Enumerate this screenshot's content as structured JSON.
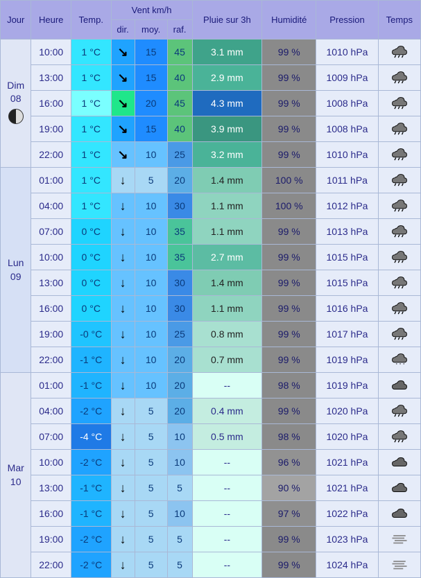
{
  "headers": {
    "jour": "Jour",
    "heure": "Heure",
    "temp": "Temp.",
    "vent": "Vent km/h",
    "dir": "dir.",
    "moy": "moy.",
    "raf": "raf.",
    "pluie": "Pluie sur 3h",
    "humidite": "Humidité",
    "pression": "Pression",
    "temps": "Temps"
  },
  "days": [
    {
      "label": "Dim 08",
      "moon": true,
      "bg": "#e0e6f5",
      "rows": [
        {
          "heure": "10:00",
          "temp": "1 °C",
          "temp_bg": "#33e6ff",
          "dir": "↘",
          "dir_bg": "#1fa3ff",
          "moy": "15",
          "moy_bg": "#1f8cff",
          "raf": "45",
          "raf_bg": "#5cc47a",
          "pluie": "3.1 mm",
          "pluie_bg": "#3fa38a",
          "pluie_fg": "#fff",
          "hum": "99 %",
          "hum_bg": "#8a8a8a",
          "pres": "1010 hPa",
          "icon": "rain"
        },
        {
          "heure": "13:00",
          "temp": "1 °C",
          "temp_bg": "#33e6ff",
          "dir": "↘",
          "dir_bg": "#1fa3ff",
          "moy": "15",
          "moy_bg": "#1f8cff",
          "raf": "40",
          "raf_bg": "#5cc47a",
          "pluie": "2.9 mm",
          "pluie_bg": "#4ab398",
          "pluie_fg": "#fff",
          "hum": "99 %",
          "hum_bg": "#8a8a8a",
          "pres": "1009 hPa",
          "icon": "rain"
        },
        {
          "heure": "16:00",
          "temp": "1 °C",
          "temp_bg": "#7affff",
          "dir": "↘",
          "dir_bg": "#1fe68a",
          "moy": "20",
          "moy_bg": "#1f8cff",
          "raf": "45",
          "raf_bg": "#5cc47a",
          "pluie": "4.3 mm",
          "pluie_bg": "#1f6bbf",
          "pluie_fg": "#fff",
          "hum": "99 %",
          "hum_bg": "#8a8a8a",
          "pres": "1008 hPa",
          "icon": "rain"
        },
        {
          "heure": "19:00",
          "temp": "1 °C",
          "temp_bg": "#33e6ff",
          "dir": "↘",
          "dir_bg": "#1fa3ff",
          "moy": "15",
          "moy_bg": "#1f8cff",
          "raf": "40",
          "raf_bg": "#5cc47a",
          "pluie": "3.9 mm",
          "pluie_bg": "#3a9680",
          "pluie_fg": "#fff",
          "hum": "99 %",
          "hum_bg": "#8a8a8a",
          "pres": "1008 hPa",
          "icon": "rain"
        },
        {
          "heure": "22:00",
          "temp": "1 °C",
          "temp_bg": "#33e6ff",
          "dir": "↘",
          "dir_bg": "#66c2ff",
          "moy": "10",
          "moy_bg": "#66c2ff",
          "raf": "25",
          "raf_bg": "#4a9ae6",
          "pluie": "3.2 mm",
          "pluie_bg": "#4ab398",
          "pluie_fg": "#fff",
          "hum": "99 %",
          "hum_bg": "#8a8a8a",
          "pres": "1010 hPa",
          "icon": "rain"
        }
      ]
    },
    {
      "label": "Lun 09",
      "moon": false,
      "bg": "#d6e0f5",
      "rows": [
        {
          "heure": "01:00",
          "temp": "1 °C",
          "temp_bg": "#33e6ff",
          "dir": "↓",
          "dir_bg": "#a8d8f5",
          "moy": "5",
          "moy_bg": "#a8d8f5",
          "raf": "20",
          "raf_bg": "#5caee6",
          "pluie": "1.4 mm",
          "pluie_bg": "#7fccb3",
          "pluie_fg": "#222",
          "hum": "100 %",
          "hum_bg": "#8a8a8a",
          "pres": "1011 hPa",
          "icon": "rain"
        },
        {
          "heure": "04:00",
          "temp": "1 °C",
          "temp_bg": "#33e6ff",
          "dir": "↓",
          "dir_bg": "#66c2ff",
          "moy": "10",
          "moy_bg": "#66c2ff",
          "raf": "30",
          "raf_bg": "#3a8ae6",
          "pluie": "1.1 mm",
          "pluie_bg": "#8fd4bf",
          "pluie_fg": "#222",
          "hum": "100 %",
          "hum_bg": "#8a8a8a",
          "pres": "1012 hPa",
          "icon": "rain"
        },
        {
          "heure": "07:00",
          "temp": "0 °C",
          "temp_bg": "#1fd4ff",
          "dir": "↓",
          "dir_bg": "#66c2ff",
          "moy": "10",
          "moy_bg": "#66c2ff",
          "raf": "35",
          "raf_bg": "#4ac49a",
          "pluie": "1.1 mm",
          "pluie_bg": "#8fd4bf",
          "pluie_fg": "#222",
          "hum": "99 %",
          "hum_bg": "#8a8a8a",
          "pres": "1013 hPa",
          "icon": "rain"
        },
        {
          "heure": "10:00",
          "temp": "0 °C",
          "temp_bg": "#1fd4ff",
          "dir": "↓",
          "dir_bg": "#66c2ff",
          "moy": "10",
          "moy_bg": "#66c2ff",
          "raf": "35",
          "raf_bg": "#4ac49a",
          "pluie": "2.7 mm",
          "pluie_bg": "#5cbca3",
          "pluie_fg": "#fff",
          "hum": "99 %",
          "hum_bg": "#8a8a8a",
          "pres": "1015 hPa",
          "icon": "rain"
        },
        {
          "heure": "13:00",
          "temp": "0 °C",
          "temp_bg": "#1fd4ff",
          "dir": "↓",
          "dir_bg": "#66c2ff",
          "moy": "10",
          "moy_bg": "#66c2ff",
          "raf": "30",
          "raf_bg": "#3a8ae6",
          "pluie": "1.4 mm",
          "pluie_bg": "#7fccb3",
          "pluie_fg": "#222",
          "hum": "99 %",
          "hum_bg": "#8a8a8a",
          "pres": "1015 hPa",
          "icon": "rain"
        },
        {
          "heure": "16:00",
          "temp": "0 °C",
          "temp_bg": "#1fd4ff",
          "dir": "↓",
          "dir_bg": "#66c2ff",
          "moy": "10",
          "moy_bg": "#66c2ff",
          "raf": "30",
          "raf_bg": "#3a8ae6",
          "pluie": "1.1 mm",
          "pluie_bg": "#8fd4bf",
          "pluie_fg": "#222",
          "hum": "99 %",
          "hum_bg": "#8a8a8a",
          "pres": "1016 hPa",
          "icon": "rain"
        },
        {
          "heure": "19:00",
          "temp": "-0 °C",
          "temp_bg": "#1fc4ff",
          "dir": "↓",
          "dir_bg": "#66c2ff",
          "moy": "10",
          "moy_bg": "#66c2ff",
          "raf": "25",
          "raf_bg": "#4a9ae6",
          "pluie": "0.8 mm",
          "pluie_bg": "#a8e0d0",
          "pluie_fg": "#222",
          "hum": "99 %",
          "hum_bg": "#8a8a8a",
          "pres": "1017 hPa",
          "icon": "rain"
        },
        {
          "heure": "22:00",
          "temp": "-1 °C",
          "temp_bg": "#1fb4ff",
          "dir": "↓",
          "dir_bg": "#66c2ff",
          "moy": "10",
          "moy_bg": "#66c2ff",
          "raf": "20",
          "raf_bg": "#5caee6",
          "pluie": "0.7 mm",
          "pluie_bg": "#a8e0d0",
          "pluie_fg": "#222",
          "hum": "99 %",
          "hum_bg": "#8a8a8a",
          "pres": "1019 hPa",
          "icon": "snow"
        }
      ]
    },
    {
      "label": "Mar 10",
      "moon": false,
      "bg": "#e0e6f5",
      "rows": [
        {
          "heure": "01:00",
          "temp": "-1 °C",
          "temp_bg": "#1fb4ff",
          "dir": "↓",
          "dir_bg": "#66c2ff",
          "moy": "10",
          "moy_bg": "#66c2ff",
          "raf": "20",
          "raf_bg": "#5caee6",
          "pluie": "--",
          "pluie_bg": "#d9fff5",
          "pluie_fg": "#2a2a8a",
          "hum": "98 %",
          "hum_bg": "#8a8a8a",
          "pres": "1019 hPa",
          "icon": "cloud"
        },
        {
          "heure": "04:00",
          "temp": "-2 °C",
          "temp_bg": "#1fa3ff",
          "dir": "↓",
          "dir_bg": "#a8d8f5",
          "moy": "5",
          "moy_bg": "#a8d8f5",
          "raf": "20",
          "raf_bg": "#5caee6",
          "pluie": "0.4 mm",
          "pluie_bg": "#c4ede0",
          "pluie_fg": "#2a2a8a",
          "hum": "99 %",
          "hum_bg": "#8a8a8a",
          "pres": "1020 hPa",
          "icon": "rain"
        },
        {
          "heure": "07:00",
          "temp": "-4 °C",
          "temp_bg": "#1f7ae6",
          "temp_fg": "#fff",
          "dir": "↓",
          "dir_bg": "#a8d8f5",
          "moy": "5",
          "moy_bg": "#a8d8f5",
          "raf": "10",
          "raf_bg": "#8cc4f0",
          "pluie": "0.5 mm",
          "pluie_bg": "#c4ede0",
          "pluie_fg": "#2a2a8a",
          "hum": "98 %",
          "hum_bg": "#8a8a8a",
          "pres": "1020 hPa",
          "icon": "rain"
        },
        {
          "heure": "10:00",
          "temp": "-2 °C",
          "temp_bg": "#1fa3ff",
          "dir": "↓",
          "dir_bg": "#a8d8f5",
          "moy": "5",
          "moy_bg": "#a8d8f5",
          "raf": "10",
          "raf_bg": "#8cc4f0",
          "pluie": "--",
          "pluie_bg": "#d9fff5",
          "pluie_fg": "#2a2a8a",
          "hum": "96 %",
          "hum_bg": "#929292",
          "pres": "1021 hPa",
          "icon": "cloud"
        },
        {
          "heure": "13:00",
          "temp": "-1 °C",
          "temp_bg": "#1fb4ff",
          "dir": "↓",
          "dir_bg": "#a8d8f5",
          "moy": "5",
          "moy_bg": "#a8d8f5",
          "raf": "5",
          "raf_bg": "#a8d8f5",
          "pluie": "--",
          "pluie_bg": "#d9fff5",
          "pluie_fg": "#2a2a8a",
          "hum": "90 %",
          "hum_bg": "#a3a3a3",
          "pres": "1021 hPa",
          "icon": "cloud"
        },
        {
          "heure": "16:00",
          "temp": "-1 °C",
          "temp_bg": "#1fb4ff",
          "dir": "↓",
          "dir_bg": "#a8d8f5",
          "moy": "5",
          "moy_bg": "#a8d8f5",
          "raf": "10",
          "raf_bg": "#8cc4f0",
          "pluie": "--",
          "pluie_bg": "#d9fff5",
          "pluie_fg": "#2a2a8a",
          "hum": "97 %",
          "hum_bg": "#8f8f8f",
          "pres": "1022 hPa",
          "icon": "cloud"
        },
        {
          "heure": "19:00",
          "temp": "-2 °C",
          "temp_bg": "#1fa3ff",
          "dir": "↓",
          "dir_bg": "#a8d8f5",
          "moy": "5",
          "moy_bg": "#a8d8f5",
          "raf": "5",
          "raf_bg": "#a8d8f5",
          "pluie": "--",
          "pluie_bg": "#d9fff5",
          "pluie_fg": "#2a2a8a",
          "hum": "99 %",
          "hum_bg": "#8a8a8a",
          "pres": "1023 hPa",
          "icon": "fog"
        },
        {
          "heure": "22:00",
          "temp": "-2 °C",
          "temp_bg": "#1fa3ff",
          "dir": "↓",
          "dir_bg": "#a8d8f5",
          "moy": "5",
          "moy_bg": "#a8d8f5",
          "raf": "5",
          "raf_bg": "#a8d8f5",
          "pluie": "--",
          "pluie_bg": "#d9fff5",
          "pluie_fg": "#2a2a8a",
          "hum": "99 %",
          "hum_bg": "#8a8a8a",
          "pres": "1024 hPa",
          "icon": "fog"
        }
      ]
    }
  ],
  "icon_svg": {
    "rain": "<svg viewBox='0 0 32 24'><path d='M8 10 Q4 10 4 14 Q4 18 8 18 L24 18 Q28 18 28 14 Q28 10 24 10 Q24 4 18 4 Q14 4 12 8 Q10 8 8 10 Z' fill='#777' stroke='#000' stroke-width='1'/><line x1='10' y1='19' x2='8' y2='23' stroke='#000' stroke-width='1.5'/><line x1='16' y1='19' x2='14' y2='23' stroke='#000' stroke-width='1.5'/><line x1='22' y1='19' x2='20' y2='23' stroke='#000' stroke-width='1.5'/></svg>",
    "snow": "<svg viewBox='0 0 32 24'><path d='M8 10 Q4 10 4 14 Q4 18 8 18 L24 18 Q28 18 28 14 Q28 10 24 10 Q24 4 18 4 Q14 4 12 8 Q10 8 8 10 Z' fill='#777' stroke='#000' stroke-width='1'/><text x='10' y='24' font-size='6'>*</text><text x='16' y='24' font-size='6'>*</text><text x='22' y='24' font-size='6'>*</text></svg>",
    "cloud": "<svg viewBox='0 0 32 24'><path d='M8 12 Q4 12 4 16 Q4 20 8 20 L24 20 Q28 20 28 16 Q28 12 24 12 Q24 6 18 6 Q14 6 12 10 Q10 10 8 12 Z' fill='#666' stroke='#000' stroke-width='1'/></svg>",
    "fog": "<svg viewBox='0 0 32 24'><line x1='6' y1='8' x2='26' y2='8' stroke='#888' stroke-width='2'/><line x1='4' y1='12' x2='24' y2='12' stroke='#888' stroke-width='2'/><line x1='8' y1='16' x2='28' y2='16' stroke='#888' stroke-width='2'/><line x1='6' y1='20' x2='22' y2='20' stroke='#888' stroke-width='2'/></svg>"
  }
}
